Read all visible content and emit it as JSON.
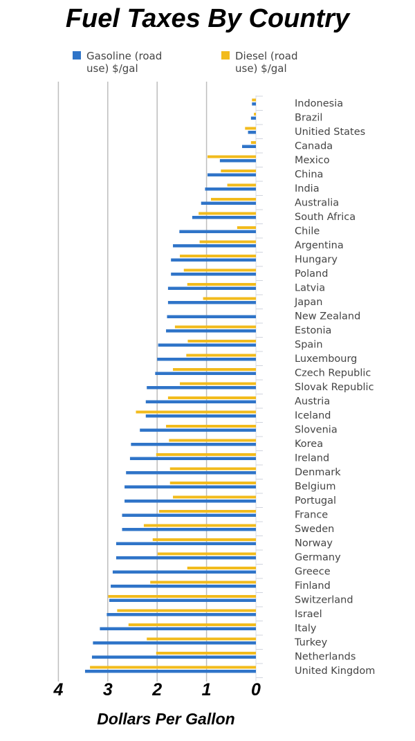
{
  "chart_data": {
    "type": "bar",
    "orientation": "horizontal",
    "title": "Fuel Taxes By Country",
    "xlabel": "Dollars Per Gallon",
    "xlim": [
      0,
      4
    ],
    "x_reversed": true,
    "xticks": [
      "4",
      "3",
      "2",
      "1",
      "0"
    ],
    "grid": true,
    "legend": "top",
    "colors": {
      "gasoline": "#2f74c8",
      "diesel": "#f2bb1d"
    },
    "categories": [
      "Indonesia",
      "Brazil",
      "Unitied States",
      "Canada",
      "Mexico",
      "China",
      "India",
      "Australia",
      "South Africa",
      "Chile",
      "Argentina",
      "Hungary",
      "Poland",
      "Latvia",
      "Japan",
      "New Zealand",
      "Estonia",
      "Spain",
      "Luxembourg",
      "Czech Republic",
      "Slovak Republic",
      "Austria",
      "Iceland",
      "Slovenia",
      "Korea",
      "Ireland",
      "Denmark",
      "Belgium",
      "Portugal",
      "France",
      "Sweden",
      "Norway",
      "Germany",
      "Greece",
      "Finland",
      "Switzerland",
      "Israel",
      "Italy",
      "Turkey",
      "Netherlands",
      "United Kingdom"
    ],
    "series": [
      {
        "name": "Gasoline (road use) $/gal",
        "values": [
          0.08,
          0.1,
          0.16,
          0.28,
          0.73,
          0.98,
          1.03,
          1.11,
          1.29,
          1.55,
          1.68,
          1.72,
          1.72,
          1.78,
          1.78,
          1.8,
          1.82,
          1.98,
          2.0,
          2.04,
          2.21,
          2.23,
          2.23,
          2.35,
          2.53,
          2.55,
          2.63,
          2.66,
          2.66,
          2.71,
          2.71,
          2.83,
          2.83,
          2.9,
          2.94,
          2.97,
          3.02,
          3.16,
          3.3,
          3.32,
          3.46
        ]
      },
      {
        "name": "Diesel (road use) $/gal",
        "values": [
          0.08,
          0.04,
          0.22,
          0.1,
          0.98,
          0.71,
          0.58,
          0.91,
          1.16,
          0.38,
          1.14,
          1.54,
          1.46,
          1.39,
          1.07,
          0,
          1.64,
          1.38,
          1.41,
          1.68,
          1.54,
          1.78,
          2.43,
          1.82,
          1.76,
          2.02,
          1.74,
          1.74,
          1.68,
          1.96,
          2.27,
          2.09,
          1.99,
          1.39,
          2.14,
          2.99,
          2.81,
          2.58,
          2.21,
          2.02,
          3.36
        ]
      }
    ]
  }
}
